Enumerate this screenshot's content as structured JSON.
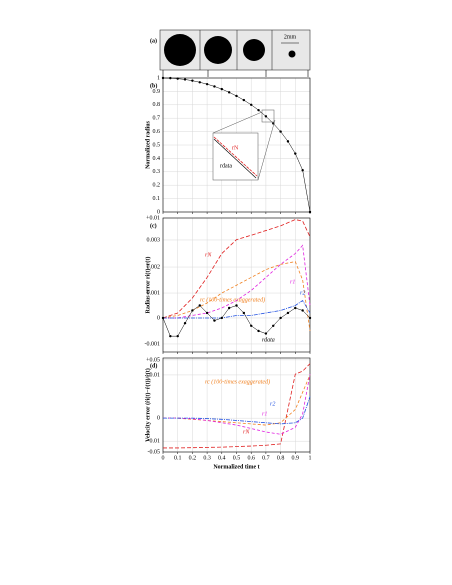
{
  "panel_a": {
    "label": "(a)",
    "scale_text": "2mm"
  },
  "chart_data": [
    {
      "type": "line",
      "label": "(b)",
      "y_label": "Normalized radius",
      "xlim": [
        0,
        1
      ],
      "xticks": [
        0,
        0.1,
        0.2,
        0.3,
        0.4,
        0.5,
        0.6,
        0.7,
        0.8,
        0.9,
        1
      ],
      "ylim": [
        0,
        1
      ],
      "yticks": [
        0,
        0.1,
        0.2,
        0.3,
        0.4,
        0.5,
        0.6,
        0.7,
        0.8,
        0.9,
        1
      ],
      "grid": true,
      "x": [
        0,
        0.05,
        0.1,
        0.15,
        0.2,
        0.25,
        0.3,
        0.35,
        0.4,
        0.45,
        0.5,
        0.55,
        0.6,
        0.65,
        0.7,
        0.75,
        0.8,
        0.85,
        0.9,
        0.95,
        1
      ],
      "series": [
        {
          "name": "rdata",
          "color": "#000000",
          "markers": true,
          "values": [
            1,
            0.999,
            0.995,
            0.989,
            0.98,
            0.968,
            0.954,
            0.937,
            0.917,
            0.893,
            0.866,
            0.835,
            0.8,
            0.76,
            0.714,
            0.661,
            0.6,
            0.527,
            0.436,
            0.312,
            0
          ]
        }
      ],
      "annotations": [
        "rN",
        "rdata"
      ]
    },
    {
      "type": "line",
      "label": "(c)",
      "y_label": "Radius error ri(t)−r(t)",
      "xlim": [
        0,
        1
      ],
      "xticks": [
        0,
        0.1,
        0.2,
        0.3,
        0.4,
        0.5,
        0.6,
        0.7,
        0.8,
        0.9,
        1
      ],
      "ylim": [
        -0.0013,
        0.01
      ],
      "yticks": [
        -0.001,
        0,
        0.001,
        0.002,
        0.003,
        {
          "value": 0.01,
          "label": "+0.01"
        }
      ],
      "grid": true,
      "x": [
        0,
        0.1,
        0.2,
        0.3,
        0.4,
        0.5,
        0.6,
        0.7,
        0.8,
        0.9,
        0.95,
        1
      ],
      "series": [
        {
          "name": "rN",
          "color": "#e02020",
          "dash": "4 2",
          "values": [
            0,
            0.0002,
            0.0008,
            0.0016,
            0.0025,
            0.0031,
            0.0045,
            0.006,
            0.0075,
            0.0095,
            0.009,
            0.004
          ]
        },
        {
          "name": "rc (100-times exaggerated)",
          "color": "#f08020",
          "dash": "3 2",
          "values": [
            0,
            0.0001,
            0.0003,
            0.0006,
            0.001,
            0.0013,
            0.0016,
            0.0019,
            0.0021,
            0.0022,
            0.0015,
            -0.0005
          ]
        },
        {
          "name": "r1",
          "color": "#e020e0",
          "dash": "3 2",
          "values": [
            0,
            0,
            0.0001,
            0.0002,
            0.0004,
            0.0007,
            0.0011,
            0.0016,
            0.0021,
            0.0025,
            0.0028,
            0.0005
          ]
        },
        {
          "name": "r2",
          "color": "#2050e0",
          "dash": "4 1 1 1",
          "values": [
            0,
            0,
            0,
            0,
            0,
            0.0001,
            0.0001,
            0.0002,
            0.0003,
            0.0005,
            0.0007,
            0.0002
          ]
        },
        {
          "name": "rdata",
          "color": "#000000",
          "markers": true,
          "x": [
            0,
            0.05,
            0.1,
            0.15,
            0.2,
            0.25,
            0.3,
            0.35,
            0.4,
            0.45,
            0.5,
            0.55,
            0.6,
            0.65,
            0.7,
            0.75,
            0.8,
            0.85,
            0.9,
            0.95,
            1
          ],
          "values": [
            0,
            -0.0007,
            -0.0007,
            -0.0002,
            0.0003,
            0.0005,
            0.0002,
            -0.0001,
            0,
            0.0004,
            0.0005,
            0.0002,
            -0.0003,
            -0.0005,
            -0.0006,
            -0.0003,
            0,
            0.0002,
            0.0004,
            0.0003,
            0
          ]
        }
      ]
    },
    {
      "type": "line",
      "label": "(d)",
      "y_label": "Velocity error (ṙi(t)−ṙ(t))/ṙ(t)",
      "x_label": "Normalized time t",
      "xlim": [
        0,
        1
      ],
      "xticks": [
        0,
        0.1,
        0.2,
        0.3,
        0.4,
        0.5,
        0.6,
        0.7,
        0.8,
        0.9,
        1
      ],
      "ylim": [
        -0.05,
        0.05
      ],
      "yticks": [
        -0.05,
        -0.01,
        0,
        0.01,
        {
          "value": 0.05,
          "label": "+0.05"
        }
      ],
      "grid": true,
      "x": [
        0,
        0.1,
        0.2,
        0.3,
        0.4,
        0.5,
        0.6,
        0.7,
        0.8,
        0.9,
        0.95,
        1
      ],
      "series": [
        {
          "name": "rN",
          "color": "#e02020",
          "dash": "4 2",
          "values": [
            -0.035,
            -0.035,
            -0.034,
            -0.033,
            -0.032,
            -0.03,
            -0.028,
            -0.025,
            -0.02,
            0.012,
            0.02,
            0.04
          ]
        },
        {
          "name": "rc (100-times exaggerated)",
          "color": "#f08020",
          "dash": "3 2",
          "values": [
            0,
            0,
            -0.0005,
            -0.001,
            -0.0015,
            -0.002,
            -0.0025,
            -0.003,
            -0.002,
            0.002,
            0.006,
            0.01
          ]
        },
        {
          "name": "r1",
          "color": "#e020e0",
          "dash": "3 2",
          "values": [
            0,
            0,
            -0.0003,
            -0.001,
            -0.002,
            -0.003,
            -0.0045,
            -0.006,
            -0.007,
            -0.004,
            0.001,
            0.012
          ]
        },
        {
          "name": "r2",
          "color": "#2050e0",
          "dash": "4 1 1 1",
          "values": [
            0,
            0,
            0,
            -0.0002,
            -0.0005,
            -0.001,
            -0.0015,
            -0.002,
            -0.0025,
            -0.002,
            0,
            0.005
          ]
        }
      ]
    }
  ]
}
